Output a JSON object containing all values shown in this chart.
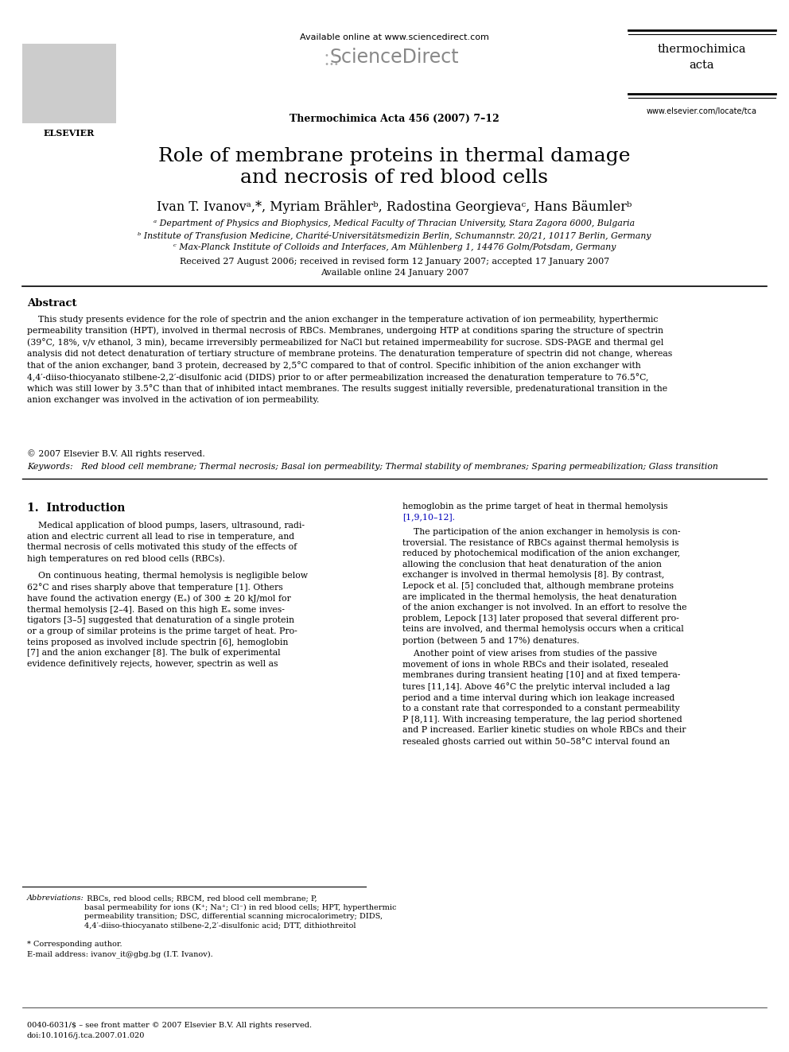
{
  "title_line1": "Role of membrane proteins in thermal damage",
  "title_line2": "and necrosis of red blood cells",
  "author_line": "Ivan T. Ivanovᵃ,*, Myriam Brählerᵇ, Radostina Georgievaᶜ, Hans Bäumlerᵇ",
  "affil_a": "ᵃ Department of Physics and Biophysics, Medical Faculty of Thracian University, Stara Zagora 6000, Bulgaria",
  "affil_b": "ᵇ Institute of Transfusion Medicine, Charité-Universitätsmedizin Berlin, Schumannstr. 20/21, 10117 Berlin, Germany",
  "affil_c": "ᶜ Max-Planck Institute of Colloids and Interfaces, Am Mühlenberg 1, 14476 Golm/Potsdam, Germany",
  "received": "Received 27 August 2006; received in revised form 12 January 2007; accepted 17 January 2007",
  "available": "Available online 24 January 2007",
  "journal_header": "Available online at www.sciencedirect.com",
  "journal_name": "Thermochimica Acta 456 (2007) 7–12",
  "journal_brand_line1": "thermochimica",
  "journal_brand_line2": "acta",
  "journal_url": "www.elsevier.com/locate/tca",
  "abstract_title": "Abstract",
  "abstract_body": "    This study presents evidence for the role of spectrin and the anion exchanger in the temperature activation of ion permeability, hyperthermic\npermeability transition (HPT), involved in thermal necrosis of RBCs. Membranes, undergoing HTP at conditions sparing the structure of spectrin\n(39°C, 18%, v/v ethanol, 3 min), became irreversibly permeabilized for NaCl but retained impermeability for sucrose. SDS-PAGE and thermal gel\nanalysis did not detect denaturation of tertiary structure of membrane proteins. The denaturation temperature of spectrin did not change, whereas\nthat of the anion exchanger, band 3 protein, decreased by 2,5°C compared to that of control. Specific inhibition of the anion exchanger with\n4,4′-diiso-thiocyanato stilbene-2,2′-disulfonic acid (DIDS) prior to or after permeabilization increased the denaturation temperature to 76.5°C,\nwhich was still lower by 3.5°C than that of inhibited intact membranes. The results suggest initially reversible, predenaturational transition in the\nanion exchanger was involved in the activation of ion permeability.",
  "copyright": "© 2007 Elsevier B.V. All rights reserved.",
  "keywords": "Keywords:   Red blood cell membrane; Thermal necrosis; Basal ion permeability; Thermal stability of membranes; Sparing permeabilization; Glass transition",
  "section1_title": "1.  Introduction",
  "left_col_p1": "    Medical application of blood pumps, lasers, ultrasound, radi-\nation and electric current all lead to rise in temperature, and\nthermal necrosis of cells motivated this study of the effects of\nhigh temperatures on red blood cells (RBCs).",
  "left_col_p2": "    On continuous heating, thermal hemolysis is negligible below\n62°C and rises sharply above that temperature [1]. Others\nhave found the activation energy (Eₐ) of 300 ± 20 kJ/mol for\nthermal hemolysis [2–4]. Based on this high Eₐ some inves-\ntigators [3–5] suggested that denaturation of a single protein\nor a group of similar proteins is the prime target of heat. Pro-\nteins proposed as involved include spectrin [6], hemoglobin\n[7] and the anion exchanger [8]. The bulk of experimental\nevidence definitively rejects, however, spectrin as well as",
  "right_col_p1a": "hemoglobin as the prime target of heat in thermal hemolysis",
  "right_col_p1b": "[1,9,10–12].",
  "right_col_p2": "    The participation of the anion exchanger in hemolysis is con-\ntroversial. The resistance of RBCs against thermal hemolysis is\nreduced by photochemical modification of the anion exchanger,\nallowing the conclusion that heat denaturation of the anion\nexchanger is involved in thermal hemolysis [8]. By contrast,\nLepock et al. [5] concluded that, although membrane proteins\nare implicated in the thermal hemolysis, the heat denaturation\nof the anion exchanger is not involved. In an effort to resolve the\nproblem, Lepock [13] later proposed that several different pro-\nteins are involved, and thermal hemolysis occurs when a critical\nportion (between 5 and 17%) denatures.",
  "right_col_p3": "    Another point of view arises from studies of the passive\nmovement of ions in whole RBCs and their isolated, resealed\nmembranes during transient heating [10] and at fixed tempera-\ntures [11,14]. Above 46°C the prelytic interval included a lag\nperiod and a time interval during which ion leakage increased\nto a constant rate that corresponded to a constant permeability\nP [8,11]. With increasing temperature, the lag period shortened\nand P increased. Earlier kinetic studies on whole RBCs and their\nresealed ghosts carried out within 50–58°C interval found an",
  "footnote_line": "_",
  "footnote_abbrev_italic": "Abbreviations:",
  "footnote_abbrev_text": " RBCs, red blood cells; RBCM, red blood cell membrane; P,\nbasal permeability for ions (K⁺; Na⁺; Cl⁻) in red blood cells; HPT, hyperthermic\npermeability transition; DSC, differential scanning microcalorimetry; DIDS,\n4,4′-diiso-thiocyanato stilbene-2,2′-disulfonic acid; DTT, dithiothreitol",
  "footnote_corr": "* Corresponding author.",
  "footnote_email_label": "E-mail address:",
  "footnote_email": " ivanov_it@gbg.bg (I.T. Ivanov).",
  "footer_issn": "0040-6031/$ – see front matter © 2007 Elsevier B.V. All rights reserved.",
  "footer_doi": "doi:10.1016/j.tca.2007.01.020",
  "bg_color": "#ffffff",
  "text_color": "#000000",
  "blue_color": "#0000bb",
  "gray_color": "#999999",
  "dark_gray": "#555555"
}
